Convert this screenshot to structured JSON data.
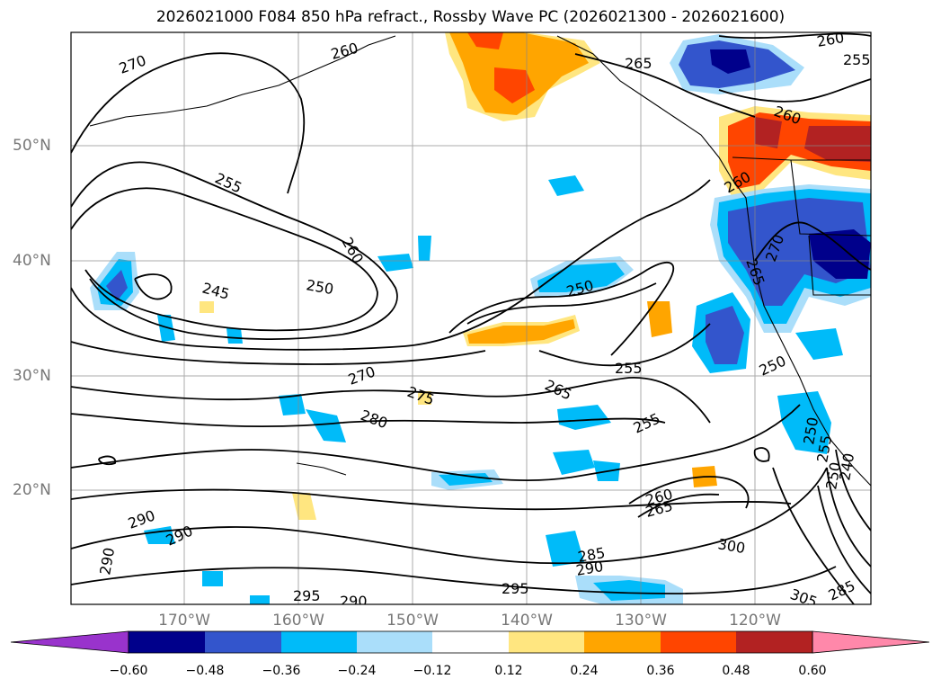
{
  "title": "2026021000 F084 850 hPa refract., Rossby Wave PC (2026021300 - 2026021600)",
  "map": {
    "lat_labels": [
      "50°N",
      "40°N",
      "30°N",
      "20°N"
    ],
    "lon_labels": [
      "170°W",
      "160°W",
      "150°W",
      "140°W",
      "130°W",
      "120°W"
    ],
    "contour_labels": [
      "270",
      "255",
      "260",
      "250",
      "245",
      "250",
      "260",
      "265",
      "260",
      "255",
      "260",
      "270",
      "265",
      "260",
      "250",
      "255",
      "265",
      "275",
      "270",
      "280",
      "255",
      "250",
      "255",
      "250",
      "240",
      "260",
      "265",
      "300",
      "285",
      "290",
      "290",
      "290",
      "290",
      "295",
      "290",
      "295",
      "305",
      "285"
    ]
  },
  "colorbar": {
    "tick_labels": [
      "−0.60",
      "−0.48",
      "−0.36",
      "−0.24",
      "−0.12",
      "0.12",
      "0.24",
      "0.36",
      "0.48",
      "0.60"
    ],
    "colors": [
      "#9933cc",
      "#00008b",
      "#3355cc",
      "#00bbf9",
      "#aadefa",
      "#ffffff",
      "#ffe680",
      "#ffa500",
      "#ff4500",
      "#b22222",
      "#ff88aa"
    ]
  },
  "colors": {
    "neg_strong": "#00008b",
    "neg_mid": "#3355cc",
    "neg_light": "#00bbf9",
    "neg_faint": "#aadefa",
    "pos_faint": "#ffe680",
    "pos_light": "#ffa500",
    "pos_mid": "#ff4500",
    "pos_strong": "#b22222",
    "contour": "#000000",
    "grid": "#888888",
    "tick_text": "#777777"
  }
}
